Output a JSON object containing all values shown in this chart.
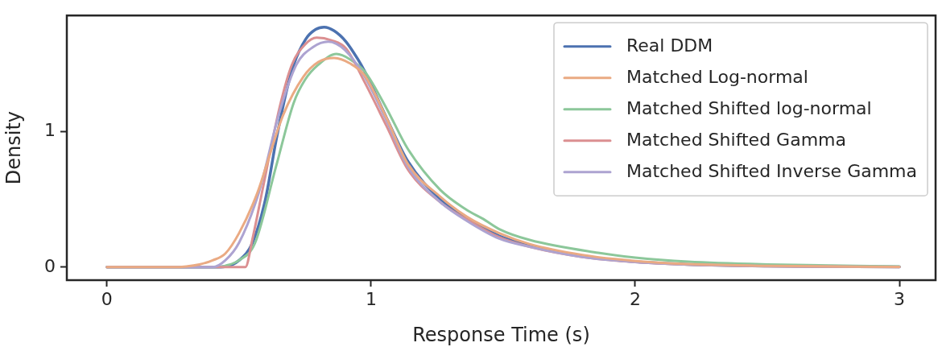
{
  "chart_data": {
    "type": "line",
    "xlabel": "Response Time (s)",
    "ylabel": "Density",
    "xlim": [
      -0.152,
      3.137
    ],
    "ylim": [
      -0.096,
      1.853
    ],
    "xticks": [
      0,
      1,
      2,
      3
    ],
    "yticks": [
      0,
      1
    ],
    "legend": "top right",
    "grid": false,
    "marker": "none",
    "line_style": "solid",
    "series": [
      {
        "name": "Real DDM",
        "color": "#4c72b0",
        "x": [
          0,
          0.4,
          0.45,
          0.5,
          0.55,
          0.6,
          0.64,
          0.68,
          0.707,
          0.753,
          0.79,
          0.822,
          0.86,
          0.905,
          0.95,
          0.976,
          1.058,
          1.139,
          1.261,
          1.363,
          1.485,
          1.6,
          1.8,
          2.0,
          2.2,
          2.5,
          3.0
        ],
        "values": [
          0,
          0,
          0.005,
          0.05,
          0.175,
          0.5,
          0.93,
          1.3,
          1.49,
          1.68,
          1.75,
          1.767,
          1.74,
          1.66,
          1.53,
          1.44,
          1.1,
          0.78,
          0.5,
          0.36,
          0.23,
          0.16,
          0.08,
          0.04,
          0.02,
          0.008,
          0.002
        ]
      },
      {
        "name": "Matched Log-normal",
        "color": "#eaaa83",
        "x": [
          0,
          0.25,
          0.3,
          0.35,
          0.4,
          0.448,
          0.5,
          0.57,
          0.62,
          0.667,
          0.743,
          0.8,
          0.86,
          0.92,
          0.976,
          1.058,
          1.139,
          1.261,
          1.363,
          1.485,
          1.6,
          1.8,
          2.0,
          2.2,
          2.5,
          3.0
        ],
        "values": [
          0,
          0,
          0.005,
          0.02,
          0.05,
          0.1,
          0.25,
          0.55,
          0.85,
          1.12,
          1.4,
          1.51,
          1.54,
          1.5,
          1.41,
          1.1,
          0.76,
          0.52,
          0.37,
          0.25,
          0.17,
          0.09,
          0.045,
          0.022,
          0.009,
          0.002
        ]
      },
      {
        "name": "Matched Shifted log-normal",
        "color": "#8cc79a",
        "x": [
          0,
          0.42,
          0.448,
          0.5,
          0.56,
          0.64,
          0.707,
          0.75,
          0.8,
          0.869,
          0.92,
          0.976,
          1.058,
          1.139,
          1.261,
          1.363,
          1.424,
          1.485,
          1.6,
          1.86,
          2.0,
          2.2,
          2.5,
          3.0
        ],
        "values": [
          0,
          0,
          0.01,
          0.05,
          0.175,
          0.74,
          1.21,
          1.38,
          1.49,
          1.569,
          1.53,
          1.44,
          1.17,
          0.87,
          0.57,
          0.42,
          0.355,
          0.28,
          0.2,
          0.105,
          0.07,
          0.04,
          0.02,
          0.005
        ]
      },
      {
        "name": "Matched Shifted Gamma",
        "color": "#db8f91",
        "x": [
          0,
          0.524,
          0.55,
          0.59,
          0.654,
          0.7,
          0.75,
          0.794,
          0.85,
          0.905,
          0.976,
          1.058,
          1.139,
          1.261,
          1.363,
          1.485,
          1.6,
          1.8,
          2.0,
          2.2,
          2.5,
          3.0
        ],
        "values": [
          0,
          0,
          0.2,
          0.58,
          1.18,
          1.49,
          1.64,
          1.69,
          1.67,
          1.61,
          1.36,
          1.04,
          0.72,
          0.48,
          0.35,
          0.22,
          0.15,
          0.075,
          0.037,
          0.018,
          0.006,
          0.001
        ]
      },
      {
        "name": "Matched Shifted Inverse Gamma",
        "color": "#ada3d1",
        "x": [
          0,
          0.4,
          0.448,
          0.5,
          0.575,
          0.65,
          0.717,
          0.78,
          0.838,
          0.9,
          0.976,
          1.058,
          1.139,
          1.261,
          1.363,
          1.485,
          1.6,
          1.8,
          2.0,
          2.2,
          2.5,
          3.0
        ],
        "values": [
          0,
          0,
          0.05,
          0.18,
          0.55,
          1.12,
          1.49,
          1.62,
          1.66,
          1.6,
          1.4,
          1.08,
          0.74,
          0.48,
          0.34,
          0.21,
          0.15,
          0.075,
          0.038,
          0.02,
          0.008,
          0.002
        ]
      }
    ]
  }
}
